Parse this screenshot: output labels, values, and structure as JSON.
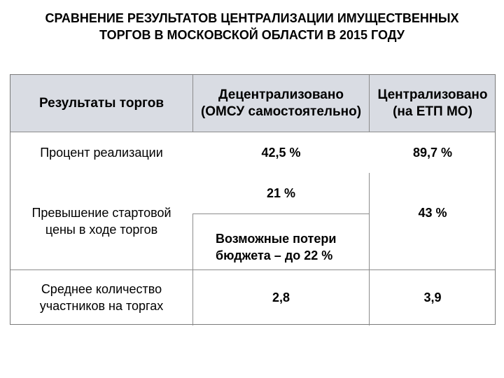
{
  "title": {
    "line1": "СРАВНЕНИЕ РЕЗУЛЬТАТОВ ЦЕНТРАЛИЗАЦИИ ИМУЩЕСТВЕННЫХ",
    "line2": "ТОРГОВ В МОСКОВСКОЙ ОБЛАСТИ  В 2015 ГОДУ"
  },
  "table": {
    "header": {
      "col1": "Результаты торгов",
      "col2_line1": "Децентрализовано",
      "col2_line2": "(ОМСУ самостоятельно)",
      "col3_line1": "Централизовано",
      "col3_line2": "(на ЕТП МО)"
    },
    "rows": [
      {
        "label": "Процент реализации",
        "decentralized": "42,5 %",
        "centralized": "89,7 %"
      },
      {
        "label_line1": "Превышение стартовой",
        "label_line2": "цены в ходе торгов",
        "decentralized": "21 %",
        "decentralized_note_line1": "Возможные потери",
        "decentralized_note_line2": "бюджета – до 22 %",
        "centralized": "43 %"
      },
      {
        "label_line1": "Среднее количество",
        "label_line2": "участников на торгах",
        "decentralized": "2,8",
        "centralized": "3,9"
      }
    ]
  },
  "colors": {
    "header_bg": "#d9dce3",
    "border": "#8c8c8c"
  }
}
